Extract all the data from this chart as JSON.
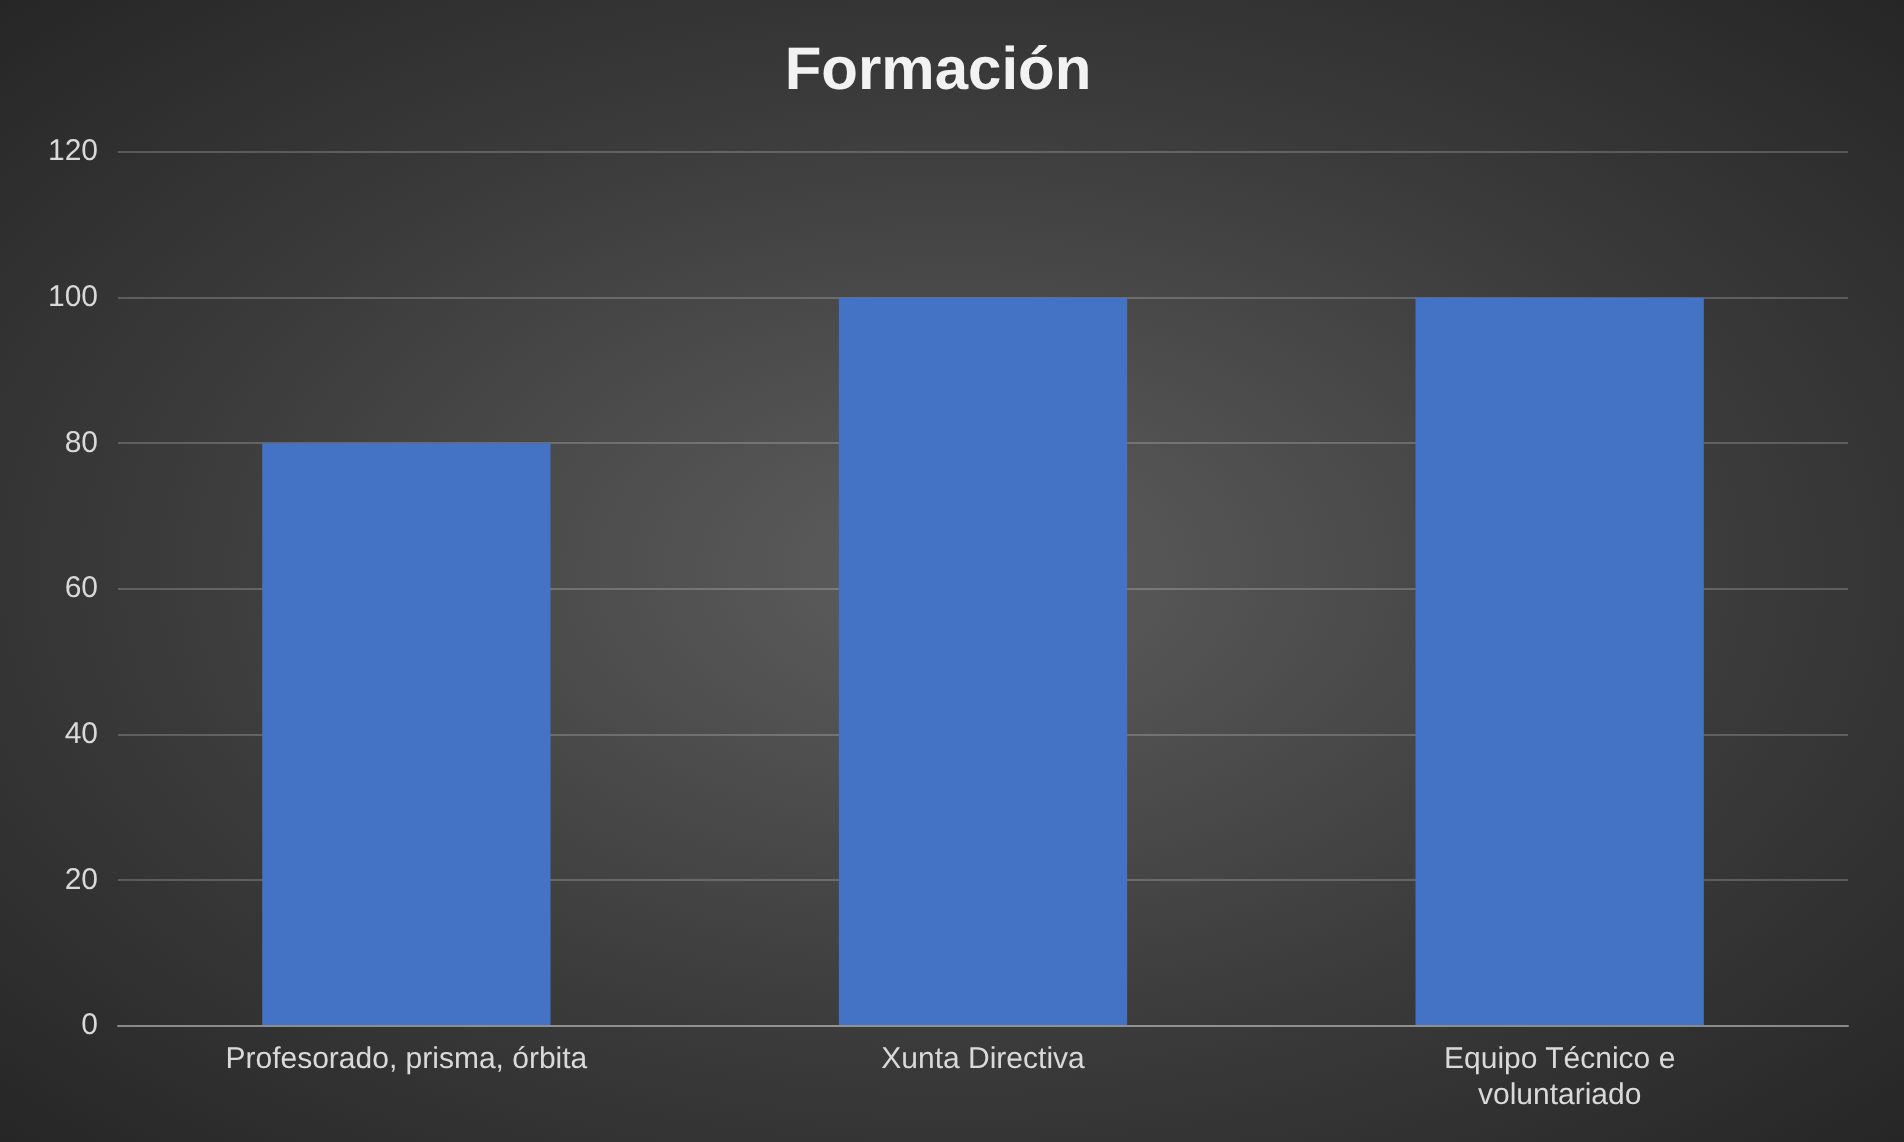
{
  "chart_data": {
    "type": "bar",
    "title": "Formación",
    "categories": [
      "Profesorado, prisma, órbita",
      "Xunta Directiva",
      "Equipo Técnico e voluntariado"
    ],
    "values": [
      80,
      100,
      100
    ],
    "color": "#4472c4",
    "ylim": [
      0,
      120
    ],
    "yticks": [
      0,
      20,
      40,
      60,
      80,
      100,
      120
    ],
    "grid": "y"
  }
}
